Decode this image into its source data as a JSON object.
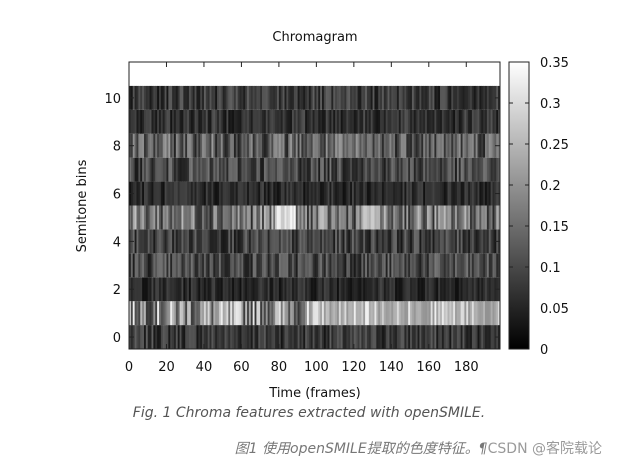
{
  "chart_data": {
    "type": "heatmap",
    "title": "Chromagram",
    "xlabel": "Time (frames)",
    "ylabel": "Semitone bins",
    "xlim": [
      0,
      198
    ],
    "ylim": [
      -0.5,
      11.5
    ],
    "xticks": [
      "0",
      "20",
      "40",
      "60",
      "80",
      "100",
      "120",
      "140",
      "160",
      "180"
    ],
    "xtick_values": [
      0,
      20,
      40,
      60,
      80,
      100,
      120,
      140,
      160,
      180
    ],
    "yticks": [
      "0",
      "2",
      "4",
      "6",
      "8",
      "10"
    ],
    "ytick_values": [
      0,
      2,
      4,
      6,
      8,
      10
    ],
    "colormap": "gray",
    "colorbar": {
      "range": [
        0,
        0.35
      ],
      "ticks": [
        "0",
        "0.05",
        "0.1",
        "0.15",
        "0.2",
        "0.25",
        "0.3",
        "0.35"
      ],
      "tick_values": [
        0,
        0.05,
        0.1,
        0.15,
        0.2,
        0.25,
        0.3,
        0.35
      ]
    },
    "n_frames": 198,
    "n_bins": 11,
    "bin_mean_intensity": [
      0.08,
      0.2,
      0.06,
      0.1,
      0.09,
      0.16,
      0.06,
      0.1,
      0.13,
      0.07,
      0.08
    ],
    "bright_regions": [
      {
        "bin": 5,
        "frames": [
          78,
          88
        ],
        "value": 0.34
      },
      {
        "bin": 5,
        "frames": [
          124,
          132
        ],
        "value": 0.28
      },
      {
        "bin": 1,
        "frames": [
          100,
          196
        ],
        "value": 0.25
      }
    ]
  },
  "caption": "Fig. 1 Chroma features extracted with openSMILE.",
  "footer": {
    "text": "图1 使用openSMILE提取的色度特征。¶",
    "watermark": "CSDN @客院载论"
  }
}
